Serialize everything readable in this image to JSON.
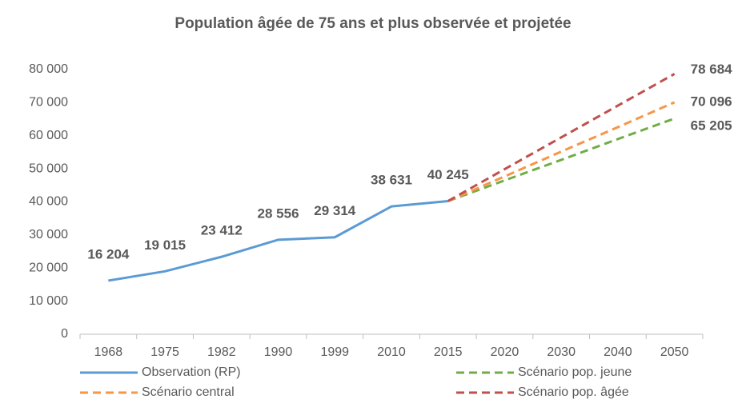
{
  "chart_data": {
    "type": "line",
    "title": "Population âgée de 75 ans et plus observée et projetée",
    "categories": [
      "1968",
      "1975",
      "1982",
      "1990",
      "1999",
      "2010",
      "2015",
      "2020",
      "2030",
      "2040",
      "2050"
    ],
    "ylim": [
      0,
      80000
    ],
    "yticks": [
      0,
      {
        "value": 10000,
        "label": "10 000"
      },
      {
        "value": 20000,
        "label": "20 000"
      },
      {
        "value": 30000,
        "label": "30 000"
      },
      {
        "value": 40000,
        "label": "40 000"
      },
      {
        "value": 50000,
        "label": "50 000"
      },
      {
        "value": 60000,
        "label": "60 000"
      },
      {
        "value": 70000,
        "label": "70 000"
      },
      {
        "value": 80000,
        "label": "80 000"
      }
    ],
    "series": [
      {
        "name": "Observation (RP)",
        "color": "#5b9bd5",
        "dashed": false,
        "values": [
          16204,
          19015,
          23412,
          28556,
          29314,
          38631,
          40245,
          null,
          null,
          null,
          null
        ],
        "value_labels": [
          "16 204",
          "19 015",
          "23 412",
          "28 556",
          "29 314",
          "38 631",
          "40 245",
          null,
          null,
          null,
          null
        ]
      },
      {
        "name": "Scénario pop. jeune",
        "color": "#70ad47",
        "dashed": true,
        "values": [
          null,
          null,
          null,
          null,
          null,
          null,
          40245,
          46500,
          52700,
          59000,
          65205
        ],
        "value_labels": [
          null,
          null,
          null,
          null,
          null,
          null,
          null,
          null,
          null,
          null,
          "65 205"
        ]
      },
      {
        "name": "Scénario central",
        "color": "#f79646",
        "dashed": true,
        "values": [
          null,
          null,
          null,
          null,
          null,
          null,
          40245,
          47700,
          55200,
          62600,
          70096
        ],
        "value_labels": [
          null,
          null,
          null,
          null,
          null,
          null,
          null,
          null,
          null,
          null,
          "70 096"
        ]
      },
      {
        "name": "Scénario pop. âgée",
        "color": "#c0504d",
        "dashed": true,
        "values": [
          null,
          null,
          null,
          null,
          null,
          null,
          40245,
          49900,
          59500,
          69100,
          78684
        ],
        "value_labels": [
          null,
          null,
          null,
          null,
          null,
          null,
          null,
          null,
          null,
          null,
          "78 684"
        ]
      }
    ]
  }
}
